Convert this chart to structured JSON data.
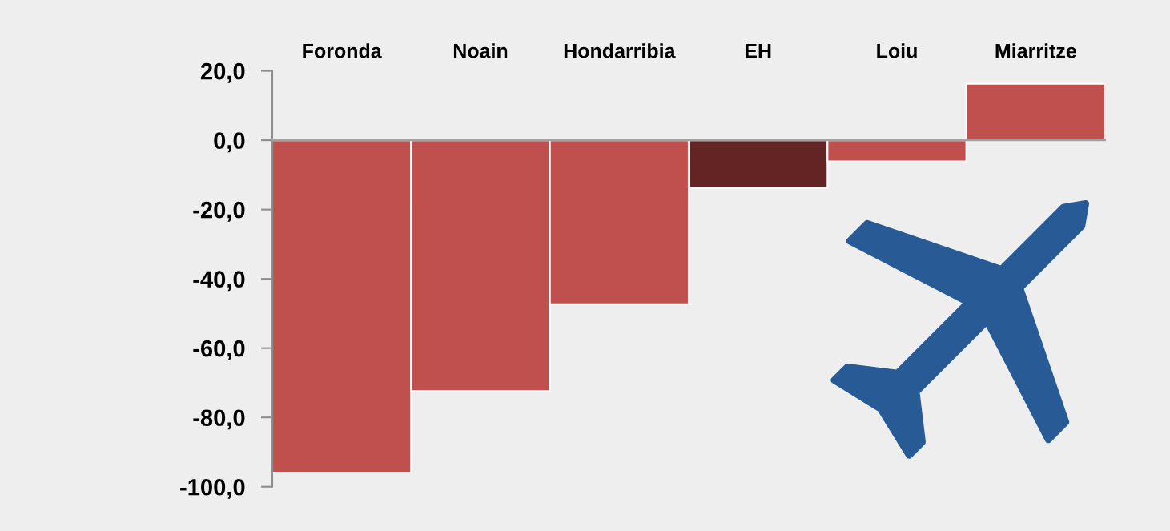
{
  "chart_data": {
    "type": "bar",
    "categories": [
      "Foronda",
      "Noain",
      "Hondarribia",
      "EH",
      "Loiu",
      "Miarritze"
    ],
    "values": [
      -95.9,
      -72.4,
      -47.3,
      -13.7,
      -6.1,
      16.3
    ],
    "colors": [
      "#c0504d",
      "#c0504d",
      "#c0504d",
      "#632523",
      "#c0504d",
      "#c0504d"
    ],
    "ylim": [
      -100,
      20
    ],
    "yticks": [
      {
        "value": -100,
        "label": "-100,0"
      },
      {
        "value": -80,
        "label": "-80,0"
      },
      {
        "value": -60,
        "label": "-60,0"
      },
      {
        "value": -40,
        "label": "-40,0"
      },
      {
        "value": -20,
        "label": "-20,0"
      },
      {
        "value": 0,
        "label": "0,0"
      },
      {
        "value": 20,
        "label": "20,0"
      }
    ]
  }
}
